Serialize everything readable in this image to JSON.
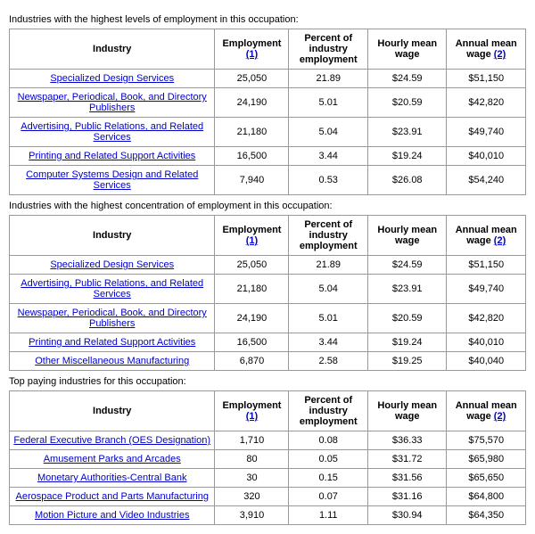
{
  "link_color": "#0000cc",
  "headers": {
    "industry": "Industry",
    "employment": "Employment",
    "employment_note": "(1)",
    "pct": "Percent of industry employment",
    "hourly": "Hourly mean wage",
    "annual": "Annual mean wage",
    "annual_note": "(2)"
  },
  "sections": [
    {
      "title": "Industries with the highest levels of employment in this occupation:",
      "rows": [
        {
          "industry": "Specialized Design Services",
          "employment": "25,050",
          "pct": "21.89",
          "hourly": "$24.59",
          "annual": "$51,150"
        },
        {
          "industry": "Newspaper, Periodical, Book, and Directory Publishers",
          "employment": "24,190",
          "pct": "5.01",
          "hourly": "$20.59",
          "annual": "$42,820"
        },
        {
          "industry": "Advertising, Public Relations, and Related Services",
          "employment": "21,180",
          "pct": "5.04",
          "hourly": "$23.91",
          "annual": "$49,740"
        },
        {
          "industry": "Printing and Related Support Activities",
          "employment": "16,500",
          "pct": "3.44",
          "hourly": "$19.24",
          "annual": "$40,010"
        },
        {
          "industry": "Computer Systems Design and Related Services",
          "employment": "7,940",
          "pct": "0.53",
          "hourly": "$26.08",
          "annual": "$54,240"
        }
      ]
    },
    {
      "title": "Industries with the highest concentration of employment in this occupation:",
      "rows": [
        {
          "industry": "Specialized Design Services",
          "employment": "25,050",
          "pct": "21.89",
          "hourly": "$24.59",
          "annual": "$51,150"
        },
        {
          "industry": "Advertising, Public Relations, and Related Services",
          "employment": "21,180",
          "pct": "5.04",
          "hourly": "$23.91",
          "annual": "$49,740"
        },
        {
          "industry": "Newspaper, Periodical, Book, and Directory Publishers",
          "employment": "24,190",
          "pct": "5.01",
          "hourly": "$20.59",
          "annual": "$42,820"
        },
        {
          "industry": "Printing and Related Support Activities",
          "employment": "16,500",
          "pct": "3.44",
          "hourly": "$19.24",
          "annual": "$40,010"
        },
        {
          "industry": "Other Miscellaneous Manufacturing",
          "employment": "6,870",
          "pct": "2.58",
          "hourly": "$19.25",
          "annual": "$40,040"
        }
      ]
    },
    {
      "title": "Top paying industries for this occupation:",
      "rows": [
        {
          "industry": "Federal Executive Branch (OES Designation)",
          "employment": "1,710",
          "pct": "0.08",
          "hourly": "$36.33",
          "annual": "$75,570"
        },
        {
          "industry": "Amusement Parks and Arcades",
          "employment": "80",
          "pct": "0.05",
          "hourly": "$31.72",
          "annual": "$65,980"
        },
        {
          "industry": "Monetary Authorities-Central Bank",
          "employment": "30",
          "pct": "0.15",
          "hourly": "$31.56",
          "annual": "$65,650"
        },
        {
          "industry": "Aerospace Product and Parts Manufacturing",
          "employment": "320",
          "pct": "0.07",
          "hourly": "$31.16",
          "annual": "$64,800"
        },
        {
          "industry": "Motion Picture and Video Industries",
          "employment": "3,910",
          "pct": "1.11",
          "hourly": "$30.94",
          "annual": "$64,350"
        }
      ]
    }
  ]
}
